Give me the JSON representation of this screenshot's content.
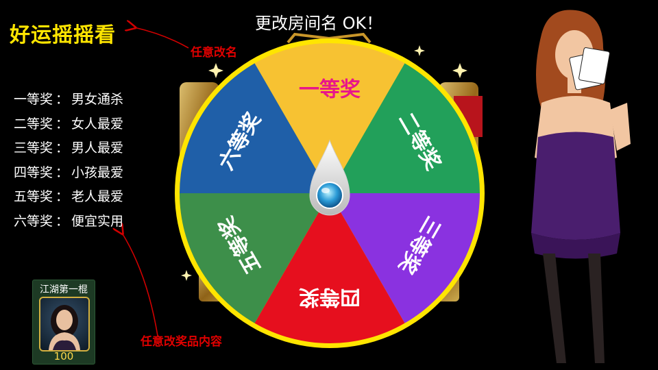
{
  "title": "好运摇摇看",
  "rename_button": "更改房间名 OK！",
  "notes": {
    "rename": "任意改名",
    "prizes": "任意改奖品内容"
  },
  "prizes": [
    {
      "label": "一等奖",
      "sep": "：",
      "value": "男女通杀"
    },
    {
      "label": "二等奖",
      "sep": "：",
      "value": "女人最爱"
    },
    {
      "label": "三等奖",
      "sep": "：",
      "value": "男人最爱"
    },
    {
      "label": "四等奖",
      "sep": "：",
      "value": "小孩最爱"
    },
    {
      "label": "五等奖",
      "sep": "：",
      "value": "老人最爱"
    },
    {
      "label": "六等奖",
      "sep": "：",
      "value": "便宜实用"
    }
  ],
  "wheel": {
    "segments": [
      {
        "label": "一等奖",
        "color": "#f7c232",
        "text_color": "#e8168a"
      },
      {
        "label": "二等奖",
        "color": "#22a05a",
        "text_color": "#ffffff"
      },
      {
        "label": "三等奖",
        "color": "#8a32e0",
        "text_color": "#ffffff"
      },
      {
        "label": "四等奖",
        "color": "#e60f1e",
        "text_color": "#ffffff"
      },
      {
        "label": "五等奖",
        "color": "#3d8f4a",
        "text_color": "#ffffff"
      },
      {
        "label": "六等奖",
        "color": "#1f5fa8",
        "text_color": "#ffffff"
      }
    ],
    "rim_color": "#ffe500",
    "frame_color": "#c9962a"
  },
  "player": {
    "name": "江湖第一棍",
    "score": "100"
  },
  "colors": {
    "title": "#ffe500",
    "note": "#e00000",
    "arrow": "#d00000"
  }
}
